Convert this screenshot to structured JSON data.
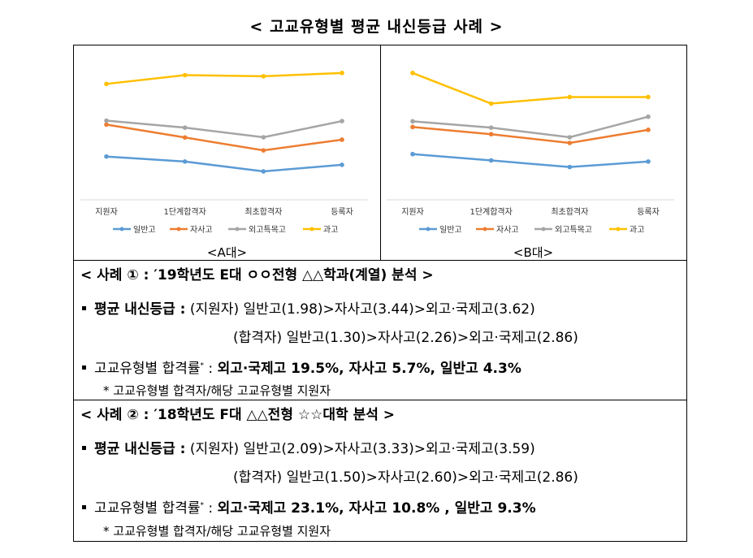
{
  "title": "< 고교유형별 평균 내신등급 사례 >",
  "chart_data": [
    {
      "type": "line",
      "caption": "<A대>",
      "categories": [
        "지원자",
        "1단계합격자",
        "최초합격자",
        "등록자"
      ],
      "series": [
        {
          "name": "일반고",
          "color": "#5B9BD5",
          "values": [
            1.98,
            1.75,
            1.3,
            1.6
          ]
        },
        {
          "name": "자사고",
          "color": "#ED7D31",
          "values": [
            3.44,
            2.85,
            2.26,
            2.75
          ]
        },
        {
          "name": "외고특목고",
          "color": "#A5A5A5",
          "values": [
            3.62,
            3.3,
            2.86,
            3.6
          ]
        },
        {
          "name": "과고",
          "color": "#FFC000",
          "values": [
            5.3,
            5.7,
            5.65,
            5.8
          ]
        }
      ],
      "ylim": [
        0,
        6.5
      ]
    },
    {
      "type": "line",
      "caption": "<B대>",
      "categories": [
        "지원자",
        "1단계합격자",
        "최초합격자",
        "등록자"
      ],
      "series": [
        {
          "name": "일반고",
          "color": "#5B9BD5",
          "values": [
            2.09,
            1.8,
            1.5,
            1.75
          ]
        },
        {
          "name": "자사고",
          "color": "#ED7D31",
          "values": [
            3.33,
            3.0,
            2.6,
            3.2
          ]
        },
        {
          "name": "외고특목고",
          "color": "#A5A5A5",
          "values": [
            3.59,
            3.3,
            2.86,
            3.8
          ]
        },
        {
          "name": "과고",
          "color": "#FFC000",
          "values": [
            5.8,
            4.4,
            4.7,
            4.7
          ]
        }
      ],
      "ylim": [
        0,
        6.5
      ]
    }
  ],
  "case1": {
    "heading": "< 사례 ① : ′19학년도 E대 ㅇㅇ전형 △△학과(계열) 분석 >",
    "avg_label": "평균 내신등급 :",
    "avg_applicants": "(지원자) 일반고(1.98)>자사고(3.44)>외고·국제고(3.62)",
    "avg_admitted": "(합격자) 일반고(1.30)>자사고(2.26)>외고·국제고(2.86)",
    "rate_label": "고교유형별 합격률",
    "rate_mark": "*",
    "rate_colon": " :",
    "rate_values": "외고·국제고 19.5%, 자사고 5.7%, 일반고 4.3%",
    "footnote": "* 고교유형별 합격자/해당 고교유형별 지원자"
  },
  "case2": {
    "heading": "< 사례 ② : ′18학년도 F대 △△전형 ☆☆대학 분석 >",
    "avg_label": "평균 내신등급 :",
    "avg_applicants": "(지원자) 일반고(2.09)>자사고(3.33)>외고·국제고(3.59)",
    "avg_admitted": "(합격자) 일반고(1.50)>자사고(2.60)>외고·국제고(2.86)",
    "rate_label": "고교유형별 합격률",
    "rate_mark": "*",
    "rate_colon": " :",
    "rate_values": "외고·국제고 23.1%, 자사고 10.8% , 일반고 9.3%",
    "footnote": "* 고교유형별 합격자/해당 고교유형별 지원자"
  }
}
